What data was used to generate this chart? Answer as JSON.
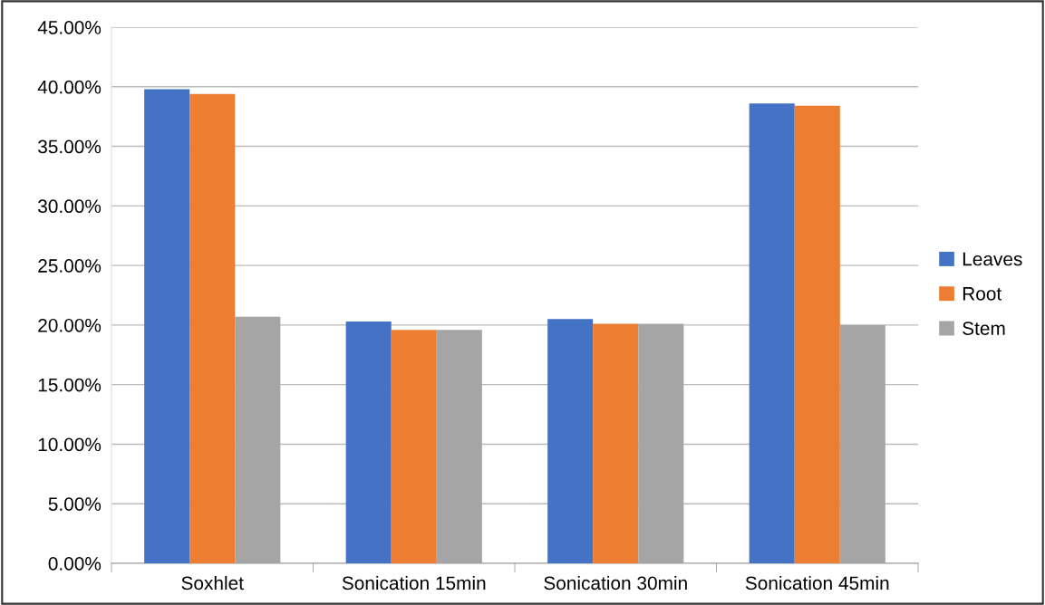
{
  "chart_data": {
    "type": "bar",
    "categories": [
      "Soxhlet",
      "Sonication 15min",
      "Sonication 30min",
      "Sonication 45min"
    ],
    "series": [
      {
        "name": "Leaves",
        "color": "#4472c4",
        "values": [
          39.8,
          20.3,
          20.5,
          38.6
        ]
      },
      {
        "name": "Root",
        "color": "#ed7d31",
        "values": [
          39.4,
          19.6,
          20.1,
          38.4
        ]
      },
      {
        "name": "Stem",
        "color": "#a5a5a5",
        "values": [
          20.7,
          19.6,
          20.1,
          20.0
        ]
      }
    ],
    "ylim": [
      0,
      45
    ],
    "yticks": [
      {
        "value": 0,
        "label": "0.00%"
      },
      {
        "value": 5,
        "label": "5.00%"
      },
      {
        "value": 10,
        "label": "10.00%"
      },
      {
        "value": 15,
        "label": "15.00%"
      },
      {
        "value": 20,
        "label": "20.00%"
      },
      {
        "value": 25,
        "label": "25.00%"
      },
      {
        "value": 30,
        "label": "30.00%"
      },
      {
        "value": 35,
        "label": "35.00%"
      },
      {
        "value": 40,
        "label": "40.00%"
      },
      {
        "value": 45,
        "label": "45.00%"
      }
    ],
    "grid": "y",
    "legend": "right"
  }
}
